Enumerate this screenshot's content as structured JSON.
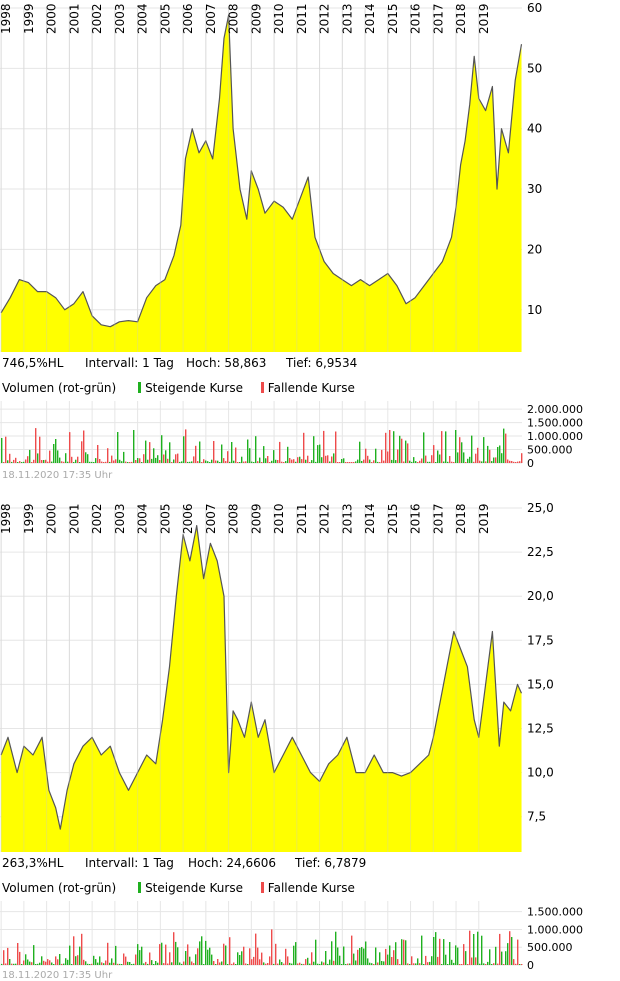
{
  "chart_data": [
    {
      "type": "area",
      "years": [
        "1998",
        "1999",
        "2000",
        "2001",
        "2002",
        "2003",
        "2004",
        "2005",
        "2006",
        "2007",
        "2008",
        "2009",
        "2010",
        "2011",
        "2012",
        "2013",
        "2014",
        "2015",
        "2016",
        "2017",
        "2018",
        "2019"
      ],
      "ylim": [
        3,
        60
      ],
      "yticks": [
        10,
        20,
        30,
        40,
        50,
        60
      ],
      "ytick_labels": [
        "10",
        "20",
        "30",
        "40",
        "50",
        "60"
      ],
      "x": [
        1998.0,
        1998.4,
        1998.8,
        1999.2,
        1999.6,
        2000.0,
        2000.4,
        2000.8,
        2001.2,
        2001.6,
        2002.0,
        2002.4,
        2002.8,
        2003.2,
        2003.6,
        2004.0,
        2004.4,
        2004.8,
        2005.2,
        2005.6,
        2005.9,
        2006.1,
        2006.4,
        2006.7,
        2007.0,
        2007.3,
        2007.6,
        2007.8,
        2008.0,
        2008.2,
        2008.5,
        2008.8,
        2009.0,
        2009.3,
        2009.6,
        2010.0,
        2010.4,
        2010.8,
        2011.2,
        2011.5,
        2011.8,
        2012.2,
        2012.6,
        2013.0,
        2013.4,
        2013.8,
        2014.2,
        2014.6,
        2015.0,
        2015.4,
        2015.8,
        2016.2,
        2016.6,
        2017.0,
        2017.4,
        2017.8,
        2018.0,
        2018.2,
        2018.4,
        2018.6,
        2018.8,
        2019.0,
        2019.3,
        2019.6,
        2019.8,
        2020.0,
        2020.3,
        2020.6,
        2020.88
      ],
      "y": [
        9.5,
        12,
        15,
        14.5,
        13,
        13,
        12,
        10,
        11,
        13,
        9,
        7.5,
        7.2,
        8,
        8.2,
        8,
        12,
        14,
        15,
        19,
        24,
        35,
        40,
        36,
        38,
        35,
        45,
        55,
        58.8,
        40,
        30,
        25,
        33,
        30,
        26,
        28,
        27,
        25,
        29,
        32,
        22,
        18,
        16,
        15,
        14,
        15,
        14,
        15,
        16,
        14,
        11,
        12,
        14,
        16,
        18,
        22,
        27,
        34,
        38,
        44,
        52,
        45,
        43,
        47,
        30,
        40,
        36,
        48,
        54
      ],
      "stats": {
        "hl": "746,5%HL",
        "interval": "Intervall: 1 Tag",
        "high": "Hoch: 58,863",
        "low": "Tief: 6,9534"
      },
      "volume": {
        "title": "Volumen (rot-grün)",
        "legend_up": "Steigende Kurse",
        "legend_down": "Fallende Kurse",
        "yticks": [
          "2.000.000",
          "1.500.000",
          "1.000.000",
          "500.000",
          "0"
        ],
        "yvals": [
          2000000,
          1500000,
          1000000,
          500000,
          0
        ],
        "ymax": 2300000
      },
      "timestamp": "18.11.2020 17:35 Uhr"
    },
    {
      "type": "area",
      "years": [
        "1998",
        "1999",
        "2000",
        "2001",
        "2002",
        "2003",
        "2004",
        "2005",
        "2006",
        "2007",
        "2008",
        "2009",
        "2010",
        "2011",
        "2012",
        "2013",
        "2014",
        "2015",
        "2016",
        "2017",
        "2018",
        "2019"
      ],
      "ylim": [
        5.5,
        25
      ],
      "yticks": [
        7.5,
        10,
        12.5,
        15,
        17.5,
        20,
        22.5,
        25
      ],
      "ytick_labels": [
        "7,5",
        "10,0",
        "12,5",
        "15,0",
        "17,5",
        "20,0",
        "22,5",
        "25,0"
      ],
      "x": [
        1998.0,
        1998.3,
        1998.7,
        1999.0,
        1999.4,
        1999.8,
        2000.1,
        2000.4,
        2000.6,
        2000.9,
        2001.2,
        2001.6,
        2002.0,
        2002.4,
        2002.8,
        2003.2,
        2003.6,
        2004.0,
        2004.4,
        2004.8,
        2005.1,
        2005.4,
        2005.7,
        2006.0,
        2006.3,
        2006.6,
        2006.9,
        2007.2,
        2007.5,
        2007.8,
        2008.0,
        2008.2,
        2008.4,
        2008.7,
        2009.0,
        2009.3,
        2009.6,
        2010.0,
        2010.4,
        2010.8,
        2011.2,
        2011.6,
        2012.0,
        2012.4,
        2012.8,
        2013.2,
        2013.6,
        2014.0,
        2014.4,
        2014.8,
        2015.2,
        2015.6,
        2016.0,
        2016.4,
        2016.8,
        2017.0,
        2017.3,
        2017.6,
        2017.9,
        2018.2,
        2018.5,
        2018.8,
        2019.0,
        2019.3,
        2019.6,
        2019.9,
        2020.1,
        2020.4,
        2020.7,
        2020.88
      ],
      "y": [
        11,
        12,
        10,
        11.5,
        11,
        12,
        9,
        8,
        6.8,
        9,
        10.5,
        11.5,
        12,
        11,
        11.5,
        10,
        9,
        10,
        11,
        10.5,
        13,
        16,
        20,
        23.5,
        22,
        24,
        21,
        23,
        22,
        20,
        10,
        13.5,
        13,
        12,
        14,
        12,
        13,
        10,
        11,
        12,
        11,
        10,
        9.5,
        10.5,
        11,
        12,
        10,
        10,
        11,
        10,
        10,
        9.8,
        10,
        10.5,
        11,
        12,
        14,
        16,
        18,
        17,
        16,
        13,
        12,
        15,
        18,
        11.5,
        14,
        13.5,
        15,
        14.5
      ],
      "stats": {
        "hl": "263,3%HL",
        "interval": "Intervall: 1 Tag",
        "high": "Hoch: 24,6606",
        "low": "Tief: 6,7879"
      },
      "volume": {
        "title": "Volumen (rot-grün)",
        "legend_up": "Steigende Kurse",
        "legend_down": "Fallende Kurse",
        "yticks": [
          "1.500.000",
          "1.000.000",
          "500.000",
          "0"
        ],
        "yvals": [
          1500000,
          1000000,
          500000,
          0
        ],
        "ymax": 1800000
      },
      "timestamp": "18.11.2020 17:35 Uhr"
    }
  ],
  "colors": {
    "fill": "#ffff00",
    "line": "#555555",
    "grid": "#e6e6e6",
    "up": "#1fb01f",
    "down": "#ee4b4b"
  }
}
